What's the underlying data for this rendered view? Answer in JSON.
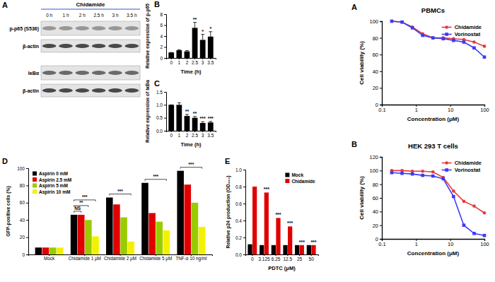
{
  "chart_data": [
    {
      "type": "blot",
      "panel": "A",
      "title": "Chidamide",
      "lanes": [
        "0 h",
        "1 h",
        "2 h",
        "2.5 h",
        "3 h",
        "3.5 h"
      ],
      "rows": [
        "p-p65 (S536)",
        "β-actin",
        "IκBα",
        "β-actin"
      ]
    },
    {
      "type": "bar",
      "panel": "B",
      "categories": [
        "0",
        "1",
        "2",
        "2.5",
        "3",
        "3.5"
      ],
      "values": [
        1.0,
        1.4,
        1.2,
        5.5,
        3.3,
        3.9
      ],
      "errors": [
        0,
        0.1,
        0.15,
        1.0,
        1.0,
        0.9
      ],
      "significance": [
        null,
        null,
        null,
        "**",
        "*",
        "*"
      ],
      "color": "#000000",
      "x_label": "Time (h)",
      "y_label": "Relative expression of p-p65",
      "ylim": [
        0,
        8
      ],
      "yticks": [
        0,
        2,
        4,
        6,
        8
      ]
    },
    {
      "type": "bar",
      "panel": "C",
      "categories": [
        "0",
        "1",
        "2",
        "2.5",
        "3",
        "3.5"
      ],
      "values": [
        1.0,
        1.0,
        0.57,
        0.5,
        0.3,
        0.32
      ],
      "errors": [
        0,
        0.08,
        0.06,
        0.05,
        0.05,
        0.04
      ],
      "significance": [
        null,
        null,
        "**",
        "**",
        "***",
        "***"
      ],
      "color": "#000000",
      "x_label": "Time (h)",
      "y_label": "Relative expression of IκBα",
      "ylim": [
        0,
        1.5
      ],
      "yticks": [
        {
          "value": 0,
          "label": "0.0"
        },
        0.5,
        {
          "value": 1,
          "label": "1.0"
        },
        1.5
      ]
    },
    {
      "type": "bar",
      "panel": "D",
      "categories": [
        "Mock",
        "Chidamide 1 μM",
        "Chidamide 2 μM",
        "Chidamide 5 μM",
        "TNF-α 10 ng/ml"
      ],
      "series": [
        {
          "name": "Aspirin 0 mM",
          "color": "#000000",
          "values": [
            8,
            46,
            66,
            83,
            97
          ]
        },
        {
          "name": "Aspirin 2.5 mM",
          "color": "#e00000",
          "values": [
            8,
            46,
            58,
            48,
            81
          ]
        },
        {
          "name": "Aspirin 5 mM",
          "color": "#99cc00",
          "values": [
            8,
            40,
            43,
            38,
            60
          ]
        },
        {
          "name": "Aspirin 10 mM",
          "color": "#f2f200",
          "values": [
            8,
            21,
            15,
            28,
            32
          ]
        }
      ],
      "comparisons": [
        {
          "category": 1,
          "from": 0,
          "to": 1,
          "label": "NS"
        },
        {
          "category": 1,
          "from": 0,
          "to": 2,
          "label": "**"
        },
        {
          "category": 1,
          "from": 0,
          "to": 3,
          "label": "***"
        },
        {
          "category": 2,
          "from": 0,
          "to": 3,
          "label": "***"
        },
        {
          "category": 3,
          "from": 0,
          "to": 3,
          "label": "***"
        },
        {
          "category": 4,
          "from": 0,
          "to": 3,
          "label": "***"
        }
      ],
      "y_label": "GFP-positive cells (%)",
      "ylim": [
        0,
        100
      ],
      "yticks": [
        0,
        20,
        40,
        60,
        80,
        100
      ],
      "legend": "top-left"
    },
    {
      "type": "bar",
      "panel": "E",
      "categories": [
        "0",
        "3.125",
        "6.25",
        "12.5",
        "25",
        "50"
      ],
      "series": [
        {
          "name": "Mock",
          "color": "#000000",
          "values": [
            0.12,
            0.11,
            0.11,
            0.11,
            0.11,
            0.11
          ]
        },
        {
          "name": "Chidamide",
          "color": "#e00000",
          "values": [
            0.8,
            0.73,
            0.43,
            0.33,
            0.11,
            0.11
          ],
          "significance": [
            null,
            "***",
            "***",
            "***",
            "***",
            "***"
          ]
        }
      ],
      "x_label": "PDTC (μM)",
      "y_label": "Relative p24 production (OD₄₅₀)",
      "ylim": [
        0,
        1
      ],
      "yticks": [
        {
          "value": 0,
          "label": "0.0"
        },
        0.2,
        0.4,
        0.6,
        0.8,
        {
          "value": 1,
          "label": "1.0"
        }
      ],
      "legend": "top-right"
    },
    {
      "type": "line",
      "panel": "A",
      "title": "PBMCs",
      "log": "x",
      "x": [
        0.195,
        0.39,
        0.78,
        1.56,
        3.125,
        6.25,
        12.5,
        25,
        50,
        100
      ],
      "series": [
        {
          "name": "Chidamide",
          "color": "#e8383d",
          "marker": "circle",
          "values": [
            100,
            99,
            93,
            85,
            80,
            80,
            79,
            78,
            75,
            70
          ]
        },
        {
          "name": "Vorinostat",
          "color": "#3b3bf5",
          "marker": "square",
          "values": [
            100,
            99,
            92,
            83,
            80,
            79,
            77,
            75,
            68,
            57
          ]
        }
      ],
      "x_label": "Concentration (μM)",
      "y_label": "Cell viability (%)",
      "xlim": [
        0.1,
        100
      ],
      "xticks": [
        0.1,
        1,
        10,
        100
      ],
      "ylim": [
        0,
        100
      ],
      "yticks": [
        0,
        20,
        40,
        60,
        80,
        100
      ],
      "legend": "top-right"
    },
    {
      "type": "line",
      "panel": "B",
      "title": "HEK 293 T cells",
      "log": "x",
      "x": [
        0.195,
        0.39,
        0.78,
        1.56,
        3.125,
        6.25,
        12.5,
        25,
        50,
        100
      ],
      "series": [
        {
          "name": "Chidamide",
          "color": "#e8383d",
          "marker": "circle",
          "values": [
            100,
            100,
            99,
            99,
            98,
            90,
            70,
            55,
            48,
            38
          ]
        },
        {
          "name": "Vorinostat",
          "color": "#3b3bf5",
          "marker": "square",
          "values": [
            97,
            96,
            95,
            93,
            92,
            88,
            62,
            20,
            8,
            5
          ]
        }
      ],
      "x_label": "Concentration (μM)",
      "y_label": "Cell viability (%)",
      "xlim": [
        0.1,
        100
      ],
      "xticks": [
        0.1,
        1,
        10,
        100
      ],
      "ylim": [
        0,
        120
      ],
      "yticks": [
        0,
        20,
        40,
        60,
        80,
        100,
        120
      ],
      "legend": "top-right"
    }
  ]
}
